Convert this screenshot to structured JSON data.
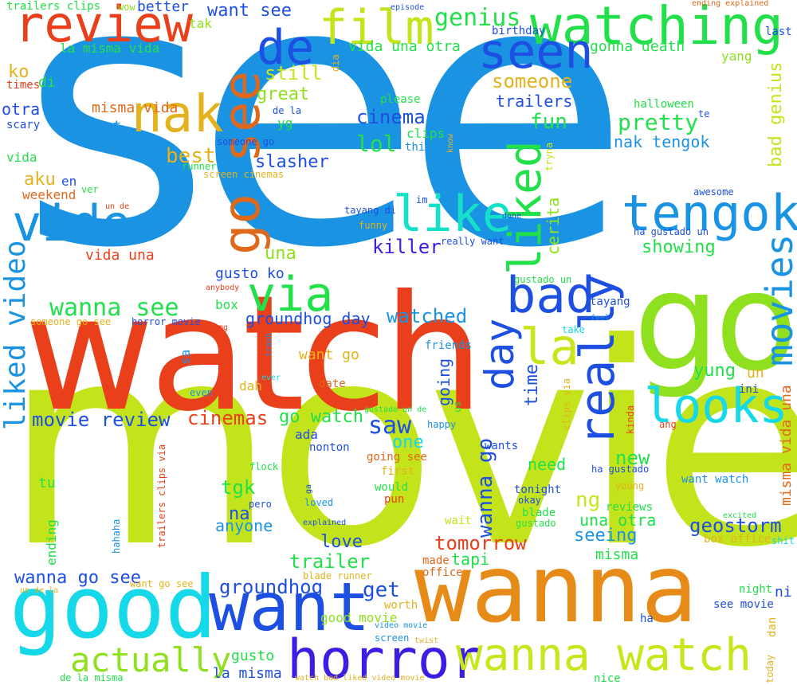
{
  "words": [
    {
      "text": "see",
      "color": "#1a93e3"
    },
    {
      "text": "movie",
      "color": "#c3e41b"
    },
    {
      "text": "watch",
      "color": "#e9401b"
    },
    {
      "text": "go",
      "color": "#8fe01e"
    },
    {
      "text": "wanna",
      "color": "#e78b18"
    },
    {
      "text": "good",
      "color": "#15d8e8"
    },
    {
      "text": "want",
      "color": "#1e4fe3"
    },
    {
      "text": "horror",
      "color": "#3b1ee3"
    },
    {
      "text": "wanna watch",
      "color": "#c9e51c"
    },
    {
      "text": "review",
      "color": "#e9401b"
    },
    {
      "text": "watching",
      "color": "#22e04a"
    },
    {
      "text": "film",
      "color": "#c3e41b"
    },
    {
      "text": "seen",
      "color": "#1e4fe3"
    },
    {
      "text": "de",
      "color": "#1e4fe3"
    },
    {
      "text": "nak",
      "color": "#e3b21d"
    },
    {
      "text": "go see",
      "color": "#e0681b"
    },
    {
      "text": "video",
      "color": "#1a93e3"
    },
    {
      "text": "like",
      "color": "#15e0c8"
    },
    {
      "text": "tengok",
      "color": "#1a93e3"
    },
    {
      "text": "via",
      "color": "#22e04a"
    },
    {
      "text": "bad",
      "color": "#1e4fe3"
    },
    {
      "text": "liked",
      "color": "#22e04a"
    },
    {
      "text": "movies",
      "color": "#1a93e3"
    },
    {
      "text": "really",
      "color": "#1e4fe3"
    },
    {
      "text": "looks",
      "color": "#15d8e8"
    },
    {
      "text": "la",
      "color": "#c9e51c"
    },
    {
      "text": "day",
      "color": "#1e4fe3"
    },
    {
      "text": "liked video",
      "color": "#1a93e3"
    },
    {
      "text": "wanna see",
      "color": "#22e04a"
    },
    {
      "text": "genius",
      "color": "#22e04a"
    },
    {
      "text": "someone",
      "color": "#e3b21d"
    },
    {
      "text": "trailers",
      "color": "#1e4fe3"
    },
    {
      "text": "cinema",
      "color": "#1e4fe3"
    },
    {
      "text": "pretty",
      "color": "#22e04a"
    },
    {
      "text": "fun",
      "color": "#22e04a"
    },
    {
      "text": "lol",
      "color": "#22e04a"
    },
    {
      "text": "nak tengok",
      "color": "#1a93e3"
    },
    {
      "text": "bad genius",
      "color": "#c3e41b"
    },
    {
      "text": "still",
      "color": "#c9e51c"
    },
    {
      "text": "great",
      "color": "#8fe01e"
    },
    {
      "text": "best",
      "color": "#e3b21d"
    },
    {
      "text": "slasher",
      "color": "#1e4fe3"
    },
    {
      "text": "killer",
      "color": "#3b1ee3"
    },
    {
      "text": "una",
      "color": "#8fe01e"
    },
    {
      "text": "showing",
      "color": "#22e04a"
    },
    {
      "text": "cerita",
      "color": "#8fe01e"
    },
    {
      "text": "movie review",
      "color": "#1e4fe3"
    },
    {
      "text": "cinemas",
      "color": "#e9401b"
    },
    {
      "text": "go watch",
      "color": "#22e04a"
    },
    {
      "text": "saw",
      "color": "#1e4fe3"
    },
    {
      "text": "one",
      "color": "#15d8e8"
    },
    {
      "text": "going",
      "color": "#1e4fe3"
    },
    {
      "text": "wanna go",
      "color": "#1e4fe3"
    },
    {
      "text": "time",
      "color": "#1e4fe3"
    },
    {
      "text": "yung",
      "color": "#22e04a"
    },
    {
      "text": "watched",
      "color": "#1a93e3"
    },
    {
      "text": "groundhog day",
      "color": "#1e4fe3"
    },
    {
      "text": "new",
      "color": "#22e04a"
    },
    {
      "text": "ng",
      "color": "#c9e51c"
    },
    {
      "text": "geostorm",
      "color": "#1e4fe3"
    },
    {
      "text": "tomorrow",
      "color": "#e9401b"
    },
    {
      "text": "trailer",
      "color": "#22e04a"
    },
    {
      "text": "groundhog",
      "color": "#1e4fe3"
    },
    {
      "text": "get",
      "color": "#1e4fe3"
    },
    {
      "text": "actually",
      "color": "#8fe01e"
    },
    {
      "text": "wanna go see",
      "color": "#1e4fe3"
    },
    {
      "text": "tgk",
      "color": "#22e04a"
    },
    {
      "text": "na",
      "color": "#1e4fe3"
    },
    {
      "text": "anyone",
      "color": "#1a93e3"
    },
    {
      "text": "love",
      "color": "#1e4fe3"
    },
    {
      "text": "seeing",
      "color": "#1a93e3"
    },
    {
      "text": "una otra",
      "color": "#22e04a"
    },
    {
      "text": "misma",
      "color": "#22e04a"
    },
    {
      "text": "tapi",
      "color": "#22e04a"
    },
    {
      "text": "need",
      "color": "#22e04a"
    },
    {
      "text": "misma vida una",
      "color": "#e0681b"
    },
    {
      "text": "ni",
      "color": "#1e4fe3"
    },
    {
      "text": "un",
      "color": "#e3b21d"
    },
    {
      "text": "ini",
      "color": "#1e4fe3"
    },
    {
      "text": "aku",
      "color": "#e3b21d"
    },
    {
      "text": "en",
      "color": "#1e4fe3"
    },
    {
      "text": "ko",
      "color": "#e3b21d"
    },
    {
      "text": "di",
      "color": "#22e04a"
    },
    {
      "text": "otra",
      "color": "#1e4fe3"
    },
    {
      "text": "got",
      "color": "#1a93e3"
    },
    {
      "text": "yg",
      "color": "#22e04a"
    },
    {
      "text": "gonna death",
      "color": "#22e04a"
    },
    {
      "text": "yang",
      "color": "#8fe01e"
    },
    {
      "text": "want see",
      "color": "#1e4fe3"
    },
    {
      "text": "la misma vida",
      "color": "#22e04a"
    },
    {
      "text": "misma vida",
      "color": "#e0681b"
    },
    {
      "text": "vida una otra",
      "color": "#22e04a"
    },
    {
      "text": "gusto ko",
      "color": "#1e4fe3"
    },
    {
      "text": "vida una",
      "color": "#e9401b"
    },
    {
      "text": "gusto",
      "color": "#22e04a"
    },
    {
      "text": "la misma",
      "color": "#1e4fe3"
    },
    {
      "text": "good movie",
      "color": "#8fe01e"
    },
    {
      "text": "weekend",
      "color": "#e0681b"
    },
    {
      "text": "better",
      "color": "#1e4fe3"
    },
    {
      "text": "tak",
      "color": "#8fe01e"
    },
    {
      "text": "last",
      "color": "#1e4fe3"
    },
    {
      "text": "halloween",
      "color": "#22e04a"
    },
    {
      "text": "box",
      "color": "#22e04a"
    },
    {
      "text": "want go",
      "color": "#e3b21d"
    },
    {
      "text": "sa",
      "color": "#1a93e3"
    },
    {
      "text": "dah",
      "color": "#e3b21d"
    },
    {
      "text": "date",
      "color": "#e0681b"
    },
    {
      "text": "ada",
      "color": "#1e4fe3"
    },
    {
      "text": "nonton",
      "color": "#1e4fe3"
    },
    {
      "text": "friends",
      "color": "#1a93e3"
    },
    {
      "text": "tu",
      "color": "#22e04a"
    },
    {
      "text": "ending",
      "color": "#22e04a"
    },
    {
      "text": "pun",
      "color": "#e9401b"
    },
    {
      "text": "would",
      "color": "#22e04a"
    },
    {
      "text": "first",
      "color": "#e3b21d"
    },
    {
      "text": "going see",
      "color": "#e0681b"
    },
    {
      "text": "tonight",
      "color": "#1e4fe3"
    },
    {
      "text": "okay",
      "color": "#1e4fe3"
    },
    {
      "text": "blade",
      "color": "#22e04a"
    },
    {
      "text": "gustado",
      "color": "#22e04a"
    },
    {
      "text": "reviews",
      "color": "#22e04a"
    },
    {
      "text": "young",
      "color": "#e3b21d"
    },
    {
      "text": "want watch",
      "color": "#1a93e3"
    },
    {
      "text": "box office",
      "color": "#e3b21d"
    },
    {
      "text": "shit",
      "color": "#15d8e8"
    },
    {
      "text": "excited",
      "color": "#22e04a"
    },
    {
      "text": "night",
      "color": "#22e04a"
    },
    {
      "text": "see movie",
      "color": "#1e4fe3"
    },
    {
      "text": "ha",
      "color": "#1e4fe3"
    },
    {
      "text": "dan",
      "color": "#e3b21d"
    },
    {
      "text": "nice",
      "color": "#22e04a"
    },
    {
      "text": "today",
      "color": "#e3b21d"
    },
    {
      "text": "ha gustado",
      "color": "#1e4fe3"
    },
    {
      "text": "kinda",
      "color": "#e9401b"
    },
    {
      "text": "ang",
      "color": "#e9401b"
    },
    {
      "text": "wants",
      "color": "#1e4fe3"
    },
    {
      "text": "tayang",
      "color": "#1e4fe3"
    },
    {
      "text": "take",
      "color": "#15d8e8"
    },
    {
      "text": "feel",
      "color": "#1a93e3"
    },
    {
      "text": "clips via",
      "color": "#e3b21d"
    },
    {
      "text": "gustado un",
      "color": "#22e04a"
    },
    {
      "text": "ha gustado un",
      "color": "#1e4fe3"
    },
    {
      "text": "awesome",
      "color": "#1e4fe3"
    },
    {
      "text": "done",
      "color": "#1e4fe3"
    },
    {
      "text": "really want",
      "color": "#1e4fe3"
    },
    {
      "text": "funny",
      "color": "#e3b21d"
    },
    {
      "text": "tayang di",
      "color": "#1e4fe3"
    },
    {
      "text": "im",
      "color": "#1e4fe3"
    },
    {
      "text": "clips",
      "color": "#22e04a"
    },
    {
      "text": "think",
      "color": "#1a93e3"
    },
    {
      "text": "know",
      "color": "#e3b21d"
    },
    {
      "text": "tryna",
      "color": "#c3e41b"
    },
    {
      "text": "te",
      "color": "#1e4fe3"
    },
    {
      "text": "please",
      "color": "#22e04a"
    },
    {
      "text": "dia",
      "color": "#e3b21d"
    },
    {
      "text": "birthday",
      "color": "#1e4fe3"
    },
    {
      "text": "episode",
      "color": "#1e4fe3"
    },
    {
      "text": "wow",
      "color": "#8fe01e"
    },
    {
      "text": "trailers clips",
      "color": "#22e04a"
    },
    {
      "text": "ending explained",
      "color": "#e0681b"
    },
    {
      "text": "times",
      "color": "#e9401b"
    },
    {
      "text": "scary",
      "color": "#1e4fe3"
    },
    {
      "text": "vida",
      "color": "#22e04a"
    },
    {
      "text": "de la",
      "color": "#1e4fe3"
    },
    {
      "text": "someone go",
      "color": "#1e4fe3"
    },
    {
      "text": "runner",
      "color": "#22e04a"
    },
    {
      "text": "screen cinemas",
      "color": "#e3b21d"
    },
    {
      "text": "ver",
      "color": "#22e04a"
    },
    {
      "text": "un de",
      "color": "#e9401b"
    },
    {
      "text": "anybody",
      "color": "#e9401b"
    },
    {
      "text": "someone go see",
      "color": "#e3b21d"
    },
    {
      "text": "horror movie",
      "color": "#1e4fe3"
    },
    {
      "text": "omg",
      "color": "#e9401b"
    },
    {
      "text": "trash",
      "color": "#1a93e3"
    },
    {
      "text": "ever",
      "color": "#15d8e8"
    },
    {
      "text": "even",
      "color": "#1a93e3"
    },
    {
      "text": "gustado un de",
      "color": "#22e04a"
    },
    {
      "text": "us",
      "color": "#22e04a"
    },
    {
      "text": "happy",
      "color": "#1a93e3"
    },
    {
      "text": "trailers clips via",
      "color": "#e9401b"
    },
    {
      "text": "flock",
      "color": "#22e04a"
    },
    {
      "text": "ga",
      "color": "#1e4fe3"
    },
    {
      "text": "pero",
      "color": "#1e4fe3"
    },
    {
      "text": "loved",
      "color": "#1a93e3"
    },
    {
      "text": "explained",
      "color": "#1e4fe3"
    },
    {
      "text": "hahaha",
      "color": "#1a93e3"
    },
    {
      "text": "wait",
      "color": "#c3e41b"
    },
    {
      "text": "made",
      "color": "#e0681b"
    },
    {
      "text": "office",
      "color": "#e0681b"
    },
    {
      "text": "blade runner",
      "color": "#e3b21d"
    },
    {
      "text": "un de la",
      "color": "#e3b21d"
    },
    {
      "text": "want go see",
      "color": "#e3b21d"
    },
    {
      "text": "worth",
      "color": "#e3b21d"
    },
    {
      "text": "video movie",
      "color": "#1a93e3"
    },
    {
      "text": "screen",
      "color": "#1a93e3"
    },
    {
      "text": "twist",
      "color": "#e3b21d"
    },
    {
      "text": "de la misma",
      "color": "#22e04a"
    },
    {
      "text": "watch bad liked video movie",
      "color": "#e3b21d"
    }
  ]
}
